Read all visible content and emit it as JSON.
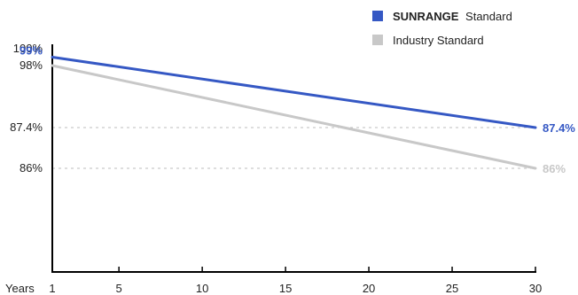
{
  "chart_data": {
    "type": "line",
    "xlabel": "Years",
    "x_ticks": [
      1,
      5,
      10,
      15,
      20,
      25,
      30
    ],
    "y_ticks": [
      {
        "value": 100,
        "label": "100%"
      },
      {
        "value": 98,
        "label": "98%"
      },
      {
        "value": 87.4,
        "label": "87.4%"
      },
      {
        "value": 86,
        "label": "86%"
      }
    ],
    "xlim": [
      1,
      30
    ],
    "legend_position": "top-right",
    "series": [
      {
        "key": "sunrange",
        "name_bold": "SUNRANGE",
        "name_rest": "Standard",
        "color": "#3558c4",
        "x": [
          1,
          30
        ],
        "y": [
          99,
          87.4
        ],
        "start_label": "99%",
        "end_label": "87.4%"
      },
      {
        "key": "industry",
        "name": "Industry Standard",
        "color": "#c8c8c8",
        "x": [
          1,
          30
        ],
        "y": [
          98,
          86
        ],
        "start_label": "",
        "end_label": "86%"
      }
    ],
    "reference_lines": [
      87.4,
      86
    ]
  }
}
